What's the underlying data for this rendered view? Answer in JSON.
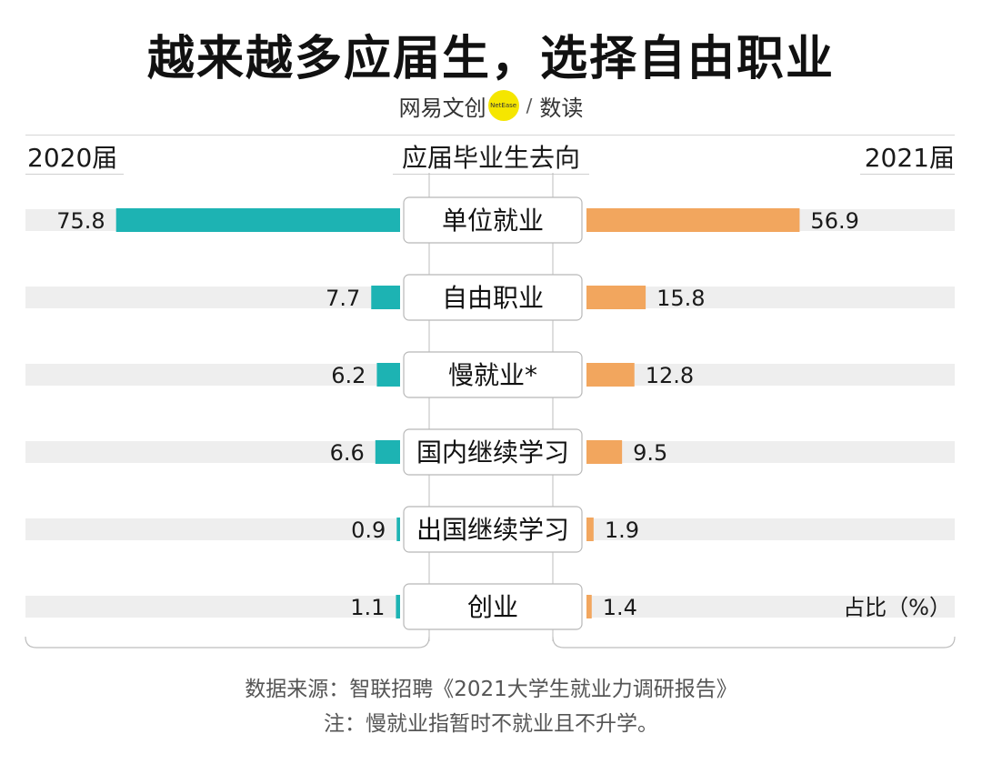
{
  "header": {
    "title": "越来越多应届生，选择自由职业",
    "brand_left": "网易文创",
    "brand_badge": "NetEase",
    "brand_sep": "/",
    "brand_right": "数读",
    "left_year": "2020届",
    "center_label": "应届毕业生去向",
    "right_year": "2021届"
  },
  "chart_data": {
    "type": "bar",
    "categories": [
      "单位就业",
      "自由职业",
      "慢就业*",
      "国内继续学习",
      "出国继续学习",
      "创业"
    ],
    "series": [
      {
        "name": "2020届",
        "values": [
          75.8,
          7.7,
          6.2,
          6.6,
          0.9,
          1.1
        ],
        "color": "#1db3b3"
      },
      {
        "name": "2021届",
        "values": [
          56.9,
          15.8,
          12.8,
          9.5,
          1.9,
          1.4
        ],
        "color": "#f2a65e"
      }
    ],
    "xlim": [
      0,
      100
    ],
    "unit_label": "占比（%）",
    "track_color": "#eeeeee"
  },
  "footer": {
    "source": "数据来源：智联招聘《2021大学生就业力调研报告》",
    "note": "注：慢就业指暂时不就业且不升学。"
  }
}
